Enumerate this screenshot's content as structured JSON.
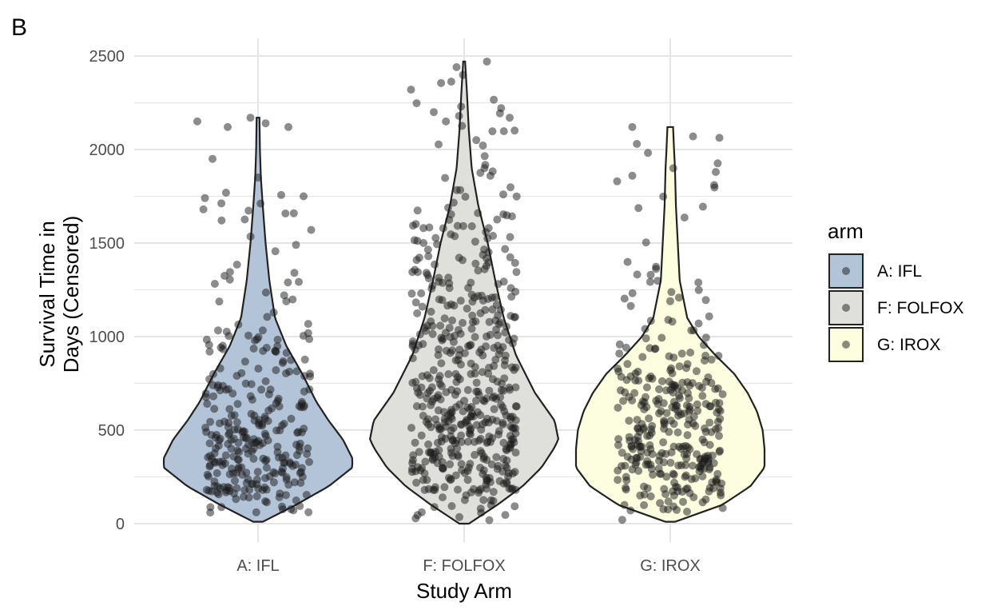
{
  "panel_tag": "B",
  "chart_data": {
    "type": "violin",
    "title": "",
    "xlabel": "Study Arm",
    "ylabel_lines": [
      "Survival Time in",
      "Days (Censored)"
    ],
    "categories": [
      "A: IFL",
      "F: FOLFOX",
      "G: IROX"
    ],
    "y_ticks": [
      0,
      500,
      1000,
      1500,
      2000,
      2500
    ],
    "ylim": [
      -100,
      2570
    ],
    "grid": true,
    "legend": {
      "title": "arm",
      "position": "right",
      "entries": [
        "A: IFL",
        "F: FOLFOX",
        "G: IROX"
      ]
    },
    "colors": {
      "A: IFL": "#b3c4d8",
      "F: FOLFOX": "#dfdfdc",
      "G: IROX": "#fdfde0",
      "outline": "#222222",
      "points": "#1a1a1a",
      "grid": "#e5e5e5"
    },
    "point_alpha": 0.5,
    "series": [
      {
        "name": "A: IFL",
        "min": 10,
        "max": 2170,
        "n_points": 300,
        "density": [
          [
            10,
            0.05
          ],
          [
            100,
            0.4
          ],
          [
            200,
            0.75
          ],
          [
            300,
            1.0
          ],
          [
            350,
            1.0
          ],
          [
            450,
            0.9
          ],
          [
            550,
            0.75
          ],
          [
            650,
            0.62
          ],
          [
            800,
            0.47
          ],
          [
            950,
            0.3
          ],
          [
            1100,
            0.18
          ],
          [
            1300,
            0.12
          ],
          [
            1500,
            0.08
          ],
          [
            1700,
            0.05
          ],
          [
            1850,
            0.03
          ],
          [
            2000,
            0.02
          ],
          [
            2170,
            0.015
          ]
        ],
        "highlight_points": [
          [
            2150,
            -0.4
          ],
          [
            2120,
            -0.2
          ],
          [
            2170,
            -0.05
          ],
          [
            2140,
            0.05
          ],
          [
            2120,
            0.2
          ],
          [
            1950,
            -0.3
          ],
          [
            1850,
            0.0
          ],
          [
            1750,
            0.3
          ],
          [
            1740,
            -0.35
          ],
          [
            1680,
            -0.36
          ],
          [
            1570,
            0.35
          ],
          [
            1490,
            0.25
          ]
        ]
      },
      {
        "name": "F: FOLFOX",
        "min": 0,
        "max": 2470,
        "n_points": 500,
        "density": [
          [
            0,
            0.05
          ],
          [
            100,
            0.35
          ],
          [
            200,
            0.62
          ],
          [
            300,
            0.82
          ],
          [
            400,
            0.95
          ],
          [
            450,
            1.0
          ],
          [
            550,
            0.96
          ],
          [
            700,
            0.75
          ],
          [
            900,
            0.55
          ],
          [
            1100,
            0.42
          ],
          [
            1300,
            0.33
          ],
          [
            1500,
            0.25
          ],
          [
            1700,
            0.15
          ],
          [
            1900,
            0.08
          ],
          [
            2100,
            0.05
          ],
          [
            2300,
            0.03
          ],
          [
            2470,
            0.01
          ]
        ],
        "highlight_points": [
          [
            2470,
            0.15
          ],
          [
            2440,
            -0.05
          ],
          [
            2320,
            -0.35
          ],
          [
            2230,
            -0.02
          ],
          [
            2200,
            -0.2
          ],
          [
            2170,
            0.3
          ],
          [
            2150,
            -0.12
          ],
          [
            2050,
            0.08
          ]
        ]
      },
      {
        "name": "G: IROX",
        "min": 10,
        "max": 2120,
        "n_points": 330,
        "density": [
          [
            10,
            0.05
          ],
          [
            100,
            0.55
          ],
          [
            200,
            0.85
          ],
          [
            300,
            1.0
          ],
          [
            400,
            1.0
          ],
          [
            500,
            0.98
          ],
          [
            600,
            0.92
          ],
          [
            700,
            0.82
          ],
          [
            800,
            0.68
          ],
          [
            900,
            0.48
          ],
          [
            1000,
            0.3
          ],
          [
            1100,
            0.18
          ],
          [
            1300,
            0.1
          ],
          [
            1500,
            0.08
          ],
          [
            1700,
            0.06
          ],
          [
            1900,
            0.05
          ],
          [
            2000,
            0.04
          ],
          [
            2120,
            0.03
          ]
        ],
        "highlight_points": [
          [
            2120,
            -0.25
          ],
          [
            2070,
            0.15
          ],
          [
            2030,
            -0.22
          ],
          [
            1900,
            0.02
          ],
          [
            1880,
            0.3
          ],
          [
            1860,
            -0.25
          ],
          [
            1830,
            -0.35
          ]
        ]
      }
    ]
  }
}
